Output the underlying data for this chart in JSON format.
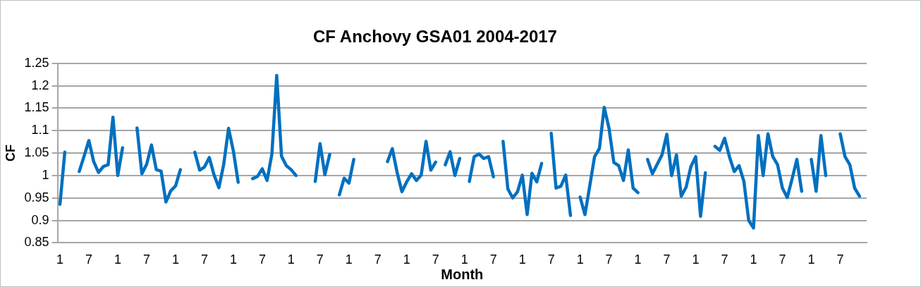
{
  "chart_data": {
    "type": "line",
    "title": "CF Anchovy GSA01 2004-2017",
    "xlabel": "Month",
    "ylabel": "CF",
    "categories": [
      "1",
      null,
      null,
      null,
      null,
      null,
      "7",
      null,
      null,
      null,
      null,
      null,
      "1",
      null,
      null,
      null,
      null,
      null,
      "7",
      null,
      null,
      null,
      null,
      null,
      "1",
      null,
      null,
      null,
      null,
      null,
      "7",
      null,
      null,
      null,
      null,
      null,
      "1",
      null,
      null,
      null,
      null,
      null,
      "7",
      null,
      null,
      null,
      null,
      null,
      "1",
      null,
      null,
      null,
      null,
      null,
      "7",
      null,
      null,
      null,
      null,
      null,
      "1",
      null,
      null,
      null,
      null,
      null,
      "7",
      null,
      null,
      null,
      null,
      null,
      "1",
      null,
      null,
      null,
      null,
      null,
      "7",
      null,
      null,
      null,
      null,
      null,
      "1",
      null,
      null,
      null,
      null,
      null,
      "7",
      null,
      null,
      null,
      null,
      null,
      "1",
      null,
      null,
      null,
      null,
      null,
      "7",
      null,
      null,
      null,
      null,
      null,
      "1",
      null,
      null,
      null,
      null,
      null,
      "7",
      null,
      null,
      null,
      null,
      null,
      "1",
      null,
      null,
      null,
      null,
      null,
      "7",
      null,
      null,
      null,
      null,
      null,
      "1",
      null,
      null,
      null,
      null,
      null,
      "7",
      null,
      null,
      null,
      null,
      null,
      "1",
      null,
      null,
      null,
      null,
      null,
      "7",
      null,
      null,
      null,
      null,
      null,
      "1",
      null,
      null,
      null,
      null,
      null,
      "7",
      null,
      null,
      null,
      null,
      null
    ],
    "series": [
      {
        "color": "#0070c0",
        "values": [
          0.936,
          1.052,
          null,
          null,
          1.009,
          1.043,
          1.078,
          1.031,
          1.007,
          1.02,
          1.024,
          1.13,
          1.0,
          1.062,
          null,
          null,
          1.106,
          1.004,
          1.025,
          1.068,
          1.013,
          1.01,
          0.941,
          0.966,
          0.977,
          1.013,
          null,
          null,
          1.052,
          1.012,
          1.019,
          1.04,
          1.001,
          0.973,
          1.025,
          1.105,
          1.055,
          0.985,
          null,
          null,
          0.993,
          0.998,
          1.015,
          0.989,
          1.048,
          1.223,
          1.043,
          1.022,
          1.013,
          1.0,
          null,
          null,
          null,
          0.987,
          1.071,
          1.002,
          1.047,
          null,
          0.957,
          0.994,
          0.983,
          1.036,
          null,
          null,
          null,
          null,
          null,
          null,
          1.031,
          1.06,
          1.007,
          0.964,
          0.986,
          1.004,
          0.989,
          1.001,
          1.076,
          1.012,
          1.03,
          null,
          1.024,
          1.053,
          1.0,
          1.038,
          null,
          0.987,
          1.042,
          1.048,
          1.038,
          1.042,
          0.997,
          null,
          1.076,
          0.97,
          0.95,
          0.964,
          1.001,
          0.913,
          1.005,
          0.986,
          1.027,
          null,
          1.094,
          0.972,
          0.976,
          1.001,
          0.911,
          null,
          0.952,
          0.913,
          0.977,
          1.042,
          1.06,
          1.152,
          1.105,
          1.029,
          1.022,
          0.989,
          1.057,
          0.972,
          0.962,
          null,
          1.036,
          1.004,
          1.025,
          1.046,
          1.092,
          1.0,
          1.046,
          0.954,
          0.974,
          1.02,
          1.042,
          0.909,
          1.006,
          null,
          1.065,
          1.056,
          1.083,
          1.042,
          1.009,
          1.022,
          0.987,
          0.9,
          0.883,
          1.089,
          1.0,
          1.093,
          1.042,
          1.024,
          0.972,
          0.951,
          0.992,
          1.036,
          0.965,
          null,
          1.036,
          0.965,
          1.089,
          1.0,
          null,
          null,
          1.093,
          1.042,
          1.024,
          0.972,
          0.954,
          null
        ]
      }
    ],
    "ylim": [
      0.85,
      1.25
    ],
    "yticks": [
      0.85,
      0.9,
      0.95,
      1,
      1.05,
      1.1,
      1.15,
      1.2,
      1.25
    ],
    "grid": "y",
    "legend": false,
    "marker": "none",
    "line_style": "solid"
  }
}
